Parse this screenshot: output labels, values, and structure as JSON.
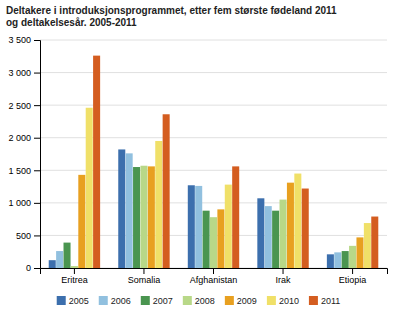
{
  "chart_data": {
    "type": "bar",
    "title": "Deltakere i introduksjonsprogrammet, etter fem største fødeland 2011\nog deltakelsesår. 2005-2011",
    "categories": [
      "Eritrea",
      "Somalia",
      "Afghanistan",
      "Irak",
      "Etiopia"
    ],
    "series": [
      {
        "name": "2005",
        "color": "#3c6fad",
        "values": [
          120,
          1820,
          1270,
          1070,
          210
        ]
      },
      {
        "name": "2006",
        "color": "#91c0df",
        "values": [
          260,
          1760,
          1260,
          950,
          240
        ]
      },
      {
        "name": "2007",
        "color": "#4a9550",
        "values": [
          390,
          1550,
          880,
          880,
          260
        ]
      },
      {
        "name": "2008",
        "color": "#b8d888",
        "values": [
          30,
          1570,
          780,
          1050,
          340
        ]
      },
      {
        "name": "2009",
        "color": "#e8a020",
        "values": [
          1430,
          1560,
          900,
          1310,
          470
        ]
      },
      {
        "name": "2010",
        "color": "#f0e068",
        "values": [
          2460,
          1950,
          1280,
          1450,
          690
        ]
      },
      {
        "name": "2011",
        "color": "#d45d20",
        "values": [
          3260,
          2360,
          1560,
          1220,
          790
        ]
      }
    ],
    "ylim": [
      0,
      3500
    ],
    "yticks": [
      0,
      500,
      {
        "value": 1000,
        "label": "1 000"
      },
      {
        "value": 1500,
        "label": "1 500"
      },
      {
        "value": 2000,
        "label": "2 000"
      },
      {
        "value": 2500,
        "label": "2 500"
      },
      {
        "value": 3000,
        "label": "3 000"
      },
      {
        "value": 3500,
        "label": "3 500"
      }
    ],
    "grid": true,
    "legend": "bottom"
  }
}
